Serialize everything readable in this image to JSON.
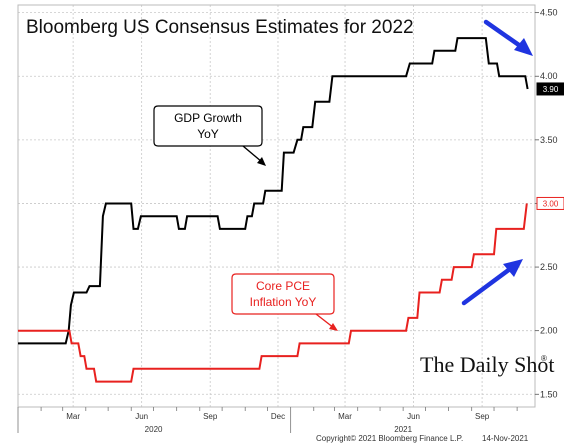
{
  "chart_data": {
    "type": "line",
    "title": "Bloomberg US Consensus Estimates for 2022",
    "ylim": [
      1.4,
      4.56
    ],
    "y_ticks": [
      "1.50",
      "2.00",
      "2.50",
      "3.00",
      "3.50",
      "4.00",
      "4.50"
    ],
    "y_tick_values": [
      1.5,
      2.0,
      2.5,
      3.0,
      3.5,
      4.0,
      4.5
    ],
    "x_range": [
      "2020-01-01",
      "2021-11-25"
    ],
    "x_ticks": [
      {
        "label": "Mar",
        "date": "2020-03-15"
      },
      {
        "label": "Jun",
        "date": "2020-06-15"
      },
      {
        "label": "Sep",
        "date": "2020-09-15"
      },
      {
        "label": "Dec",
        "date": "2020-12-15"
      },
      {
        "label": "Mar",
        "date": "2021-03-15"
      },
      {
        "label": "Jun",
        "date": "2021-06-15"
      },
      {
        "label": "Sep",
        "date": "2021-09-15"
      }
    ],
    "year_labels": [
      {
        "label": "2020",
        "date": "2020-07-01"
      },
      {
        "label": "2021",
        "date": "2021-06-01"
      }
    ],
    "grid": true,
    "series": [
      {
        "name": "GDP Growth YoY",
        "color": "#000000",
        "last_value_label": "3.90",
        "points": [
          [
            "2020-01-01",
            1.9
          ],
          [
            "2020-03-05",
            1.9
          ],
          [
            "2020-03-09",
            2.0
          ],
          [
            "2020-03-12",
            2.2
          ],
          [
            "2020-03-16",
            2.3
          ],
          [
            "2020-03-25",
            2.3
          ],
          [
            "2020-04-02",
            2.3
          ],
          [
            "2020-04-06",
            2.35
          ],
          [
            "2020-04-20",
            2.35
          ],
          [
            "2020-04-24",
            2.9
          ],
          [
            "2020-04-28",
            3.0
          ],
          [
            "2020-06-01",
            3.0
          ],
          [
            "2020-06-04",
            2.8
          ],
          [
            "2020-06-10",
            2.8
          ],
          [
            "2020-06-14",
            2.9
          ],
          [
            "2020-08-01",
            2.9
          ],
          [
            "2020-08-04",
            2.8
          ],
          [
            "2020-08-12",
            2.8
          ],
          [
            "2020-08-15",
            2.9
          ],
          [
            "2020-09-25",
            2.9
          ],
          [
            "2020-09-28",
            2.8
          ],
          [
            "2020-11-01",
            2.8
          ],
          [
            "2020-11-04",
            2.9
          ],
          [
            "2020-11-10",
            2.9
          ],
          [
            "2020-11-13",
            3.0
          ],
          [
            "2020-11-25",
            3.0
          ],
          [
            "2020-11-28",
            3.1
          ],
          [
            "2020-12-20",
            3.1
          ],
          [
            "2020-12-23",
            3.4
          ],
          [
            "2021-01-05",
            3.4
          ],
          [
            "2021-01-10",
            3.5
          ],
          [
            "2021-01-15",
            3.5
          ],
          [
            "2021-01-18",
            3.6
          ],
          [
            "2021-01-30",
            3.6
          ],
          [
            "2021-02-03",
            3.8
          ],
          [
            "2021-02-22",
            3.8
          ],
          [
            "2021-02-26",
            4.0
          ],
          [
            "2021-06-05",
            4.0
          ],
          [
            "2021-06-10",
            4.1
          ],
          [
            "2021-07-10",
            4.1
          ],
          [
            "2021-07-13",
            4.2
          ],
          [
            "2021-08-10",
            4.2
          ],
          [
            "2021-08-13",
            4.3
          ],
          [
            "2021-09-20",
            4.3
          ],
          [
            "2021-09-24",
            4.1
          ],
          [
            "2021-10-05",
            4.1
          ],
          [
            "2021-10-08",
            4.0
          ],
          [
            "2021-11-12",
            4.0
          ],
          [
            "2021-11-15",
            3.9
          ]
        ]
      },
      {
        "name": "Core PCE Inflation YoY",
        "color": "#e8211f",
        "last_value_label": "3.00",
        "points": [
          [
            "2020-01-01",
            2.0
          ],
          [
            "2020-03-10",
            2.0
          ],
          [
            "2020-03-13",
            1.9
          ],
          [
            "2020-03-22",
            1.9
          ],
          [
            "2020-03-25",
            1.8
          ],
          [
            "2020-03-30",
            1.8
          ],
          [
            "2020-04-02",
            1.7
          ],
          [
            "2020-04-12",
            1.7
          ],
          [
            "2020-04-15",
            1.6
          ],
          [
            "2020-06-01",
            1.6
          ],
          [
            "2020-06-04",
            1.7
          ],
          [
            "2020-11-20",
            1.7
          ],
          [
            "2020-11-23",
            1.8
          ],
          [
            "2021-01-10",
            1.8
          ],
          [
            "2021-01-13",
            1.9
          ],
          [
            "2021-03-20",
            1.9
          ],
          [
            "2021-03-23",
            2.0
          ],
          [
            "2021-06-05",
            2.0
          ],
          [
            "2021-06-08",
            2.1
          ],
          [
            "2021-06-20",
            2.1
          ],
          [
            "2021-06-23",
            2.3
          ],
          [
            "2021-07-20",
            2.3
          ],
          [
            "2021-07-23",
            2.4
          ],
          [
            "2021-08-05",
            2.4
          ],
          [
            "2021-08-08",
            2.5
          ],
          [
            "2021-09-01",
            2.5
          ],
          [
            "2021-09-04",
            2.6
          ],
          [
            "2021-10-01",
            2.6
          ],
          [
            "2021-10-04",
            2.8
          ],
          [
            "2021-11-10",
            2.8
          ],
          [
            "2021-11-14",
            3.0
          ]
        ]
      }
    ],
    "annotations": [
      {
        "name": "gdp-callout",
        "lines": [
          "GDP Growth",
          "YoY"
        ],
        "style": "box",
        "color": "#000000"
      },
      {
        "name": "pce-callout",
        "lines": [
          "Core PCE",
          "Inflation YoY"
        ],
        "style": "box",
        "color": "#e8211f"
      }
    ],
    "arrows": [
      {
        "name": "down-trend-arrow",
        "color": "#1f34e0",
        "direction": "down-right"
      },
      {
        "name": "up-trend-arrow",
        "color": "#1f34e0",
        "direction": "up-right"
      }
    ]
  },
  "footer": {
    "copyright": "Copyright© 2021 Bloomberg Finance L.P.",
    "date": "14-Nov-2021"
  },
  "watermark": {
    "text": "The Daily Shot",
    "mark": "®"
  }
}
